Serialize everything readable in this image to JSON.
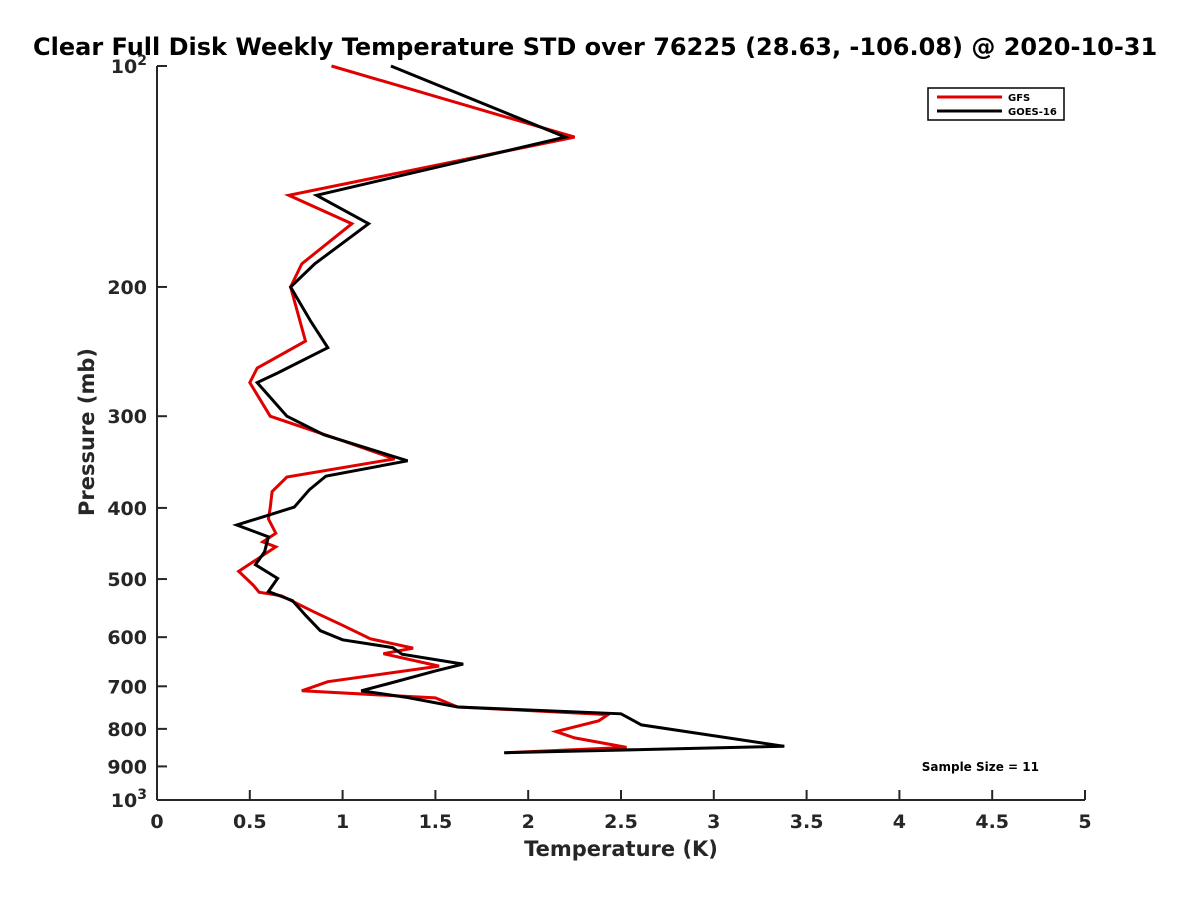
{
  "chart_data": {
    "type": "line",
    "title": "Clear Full Disk Weekly Temperature STD over 76225 (28.63, -106.08) @ 2020-10-31",
    "xlabel": "Temperature (K)",
    "ylabel": "Pressure (mb)",
    "xlim": [
      0,
      5
    ],
    "ylim": [
      100,
      1000
    ],
    "yscale": "log",
    "y_reversed": true,
    "grid": false,
    "legend_position": "top-right",
    "x_ticks": [
      "0",
      "0.5",
      "1",
      "1.5",
      "2",
      "2.5",
      "3",
      "3.5",
      "4",
      "4.5",
      "5"
    ],
    "y_ticks": [
      {
        "value": 100,
        "base": "10",
        "exp": "2"
      },
      {
        "value": 200,
        "label": "200"
      },
      {
        "value": 300,
        "label": "300"
      },
      {
        "value": 400,
        "label": "400"
      },
      {
        "value": 500,
        "label": "500"
      },
      {
        "value": 600,
        "label": "600"
      },
      {
        "value": 700,
        "label": "700"
      },
      {
        "value": 800,
        "label": "800"
      },
      {
        "value": 900,
        "label": "900"
      },
      {
        "value": 1000,
        "base": "10",
        "exp": "3"
      }
    ],
    "series": [
      {
        "name": "GFS",
        "color": "#e00000",
        "points": [
          [
            0.94,
            100
          ],
          [
            2.25,
            125
          ],
          [
            0.71,
            150
          ],
          [
            1.05,
            164
          ],
          [
            0.78,
            186
          ],
          [
            0.72,
            200
          ],
          [
            0.8,
            237
          ],
          [
            0.54,
            258
          ],
          [
            0.5,
            270
          ],
          [
            0.61,
            300
          ],
          [
            1.0,
            324
          ],
          [
            1.28,
            343
          ],
          [
            0.7,
            363
          ],
          [
            0.62,
            380
          ],
          [
            0.61,
            400
          ],
          [
            0.6,
            414
          ],
          [
            0.64,
            433
          ],
          [
            0.57,
            445
          ],
          [
            0.64,
            452
          ],
          [
            0.44,
            488
          ],
          [
            0.52,
            510
          ],
          [
            0.55,
            521
          ],
          [
            0.67,
            527
          ],
          [
            0.85,
            555
          ],
          [
            1.0,
            578
          ],
          [
            1.15,
            603
          ],
          [
            1.38,
            621
          ],
          [
            1.22,
            632
          ],
          [
            1.52,
            657
          ],
          [
            0.92,
            690
          ],
          [
            0.78,
            710
          ],
          [
            1.5,
            726
          ],
          [
            1.62,
            747
          ],
          [
            2.43,
            765
          ],
          [
            2.38,
            780
          ],
          [
            2.15,
            807
          ],
          [
            2.25,
            823
          ],
          [
            2.53,
            848
          ],
          [
            1.88,
            862
          ]
        ]
      },
      {
        "name": "GOES-16",
        "color": "#000000",
        "points": [
          [
            1.26,
            100
          ],
          [
            2.2,
            125
          ],
          [
            0.86,
            150
          ],
          [
            1.14,
            164
          ],
          [
            0.85,
            186
          ],
          [
            0.72,
            200
          ],
          [
            0.83,
            223
          ],
          [
            0.92,
            242
          ],
          [
            0.65,
            262
          ],
          [
            0.54,
            270
          ],
          [
            0.7,
            300
          ],
          [
            0.9,
            318
          ],
          [
            1.35,
            345
          ],
          [
            0.91,
            362
          ],
          [
            0.82,
            378
          ],
          [
            0.74,
            399
          ],
          [
            0.43,
            422
          ],
          [
            0.6,
            438
          ],
          [
            0.58,
            459
          ],
          [
            0.53,
            478
          ],
          [
            0.65,
            499
          ],
          [
            0.6,
            520
          ],
          [
            0.73,
            535
          ],
          [
            0.8,
            560
          ],
          [
            0.88,
            588
          ],
          [
            1.0,
            605
          ],
          [
            1.27,
            620
          ],
          [
            1.32,
            633
          ],
          [
            1.65,
            653
          ],
          [
            1.5,
            667
          ],
          [
            1.24,
            695
          ],
          [
            1.1,
            710
          ],
          [
            1.35,
            725
          ],
          [
            1.62,
            747
          ],
          [
            2.5,
            763
          ],
          [
            2.61,
            790
          ],
          [
            3.38,
            845
          ],
          [
            1.87,
            862
          ]
        ]
      }
    ],
    "annotation": "Sample Size = 11"
  }
}
